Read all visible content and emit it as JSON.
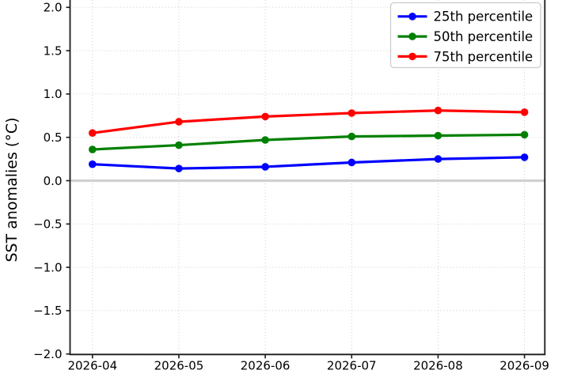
{
  "chart_data": {
    "type": "line",
    "title": "",
    "xlabel": "",
    "ylabel": "SST anomalies (°C)",
    "categories": [
      "2026-04",
      "2026-05",
      "2026-06",
      "2026-07",
      "2026-08",
      "2026-09"
    ],
    "series": [
      {
        "name": "25th percentile",
        "color": "#0000ff",
        "values": [
          0.19,
          0.14,
          0.16,
          0.21,
          0.25,
          0.27
        ]
      },
      {
        "name": "50th percentile",
        "color": "#008000",
        "values": [
          0.36,
          0.41,
          0.47,
          0.51,
          0.52,
          0.53
        ]
      },
      {
        "name": "75th percentile",
        "color": "#ff0000",
        "values": [
          0.55,
          0.68,
          0.74,
          0.78,
          0.81,
          0.79
        ]
      }
    ],
    "ylim": [
      -2.0,
      2.0
    ],
    "yticks": [
      {
        "label": "2.0",
        "value": 2.0
      },
      {
        "label": "1.5",
        "value": 1.5
      },
      {
        "label": "1.0",
        "value": 1.0
      },
      {
        "label": "0.5",
        "value": 0.5
      },
      {
        "label": "0.0",
        "value": 0.0
      },
      {
        "label": "−0.5",
        "value": -0.5
      },
      {
        "label": "−1.0",
        "value": -1.0
      },
      {
        "label": "−1.5",
        "value": -1.5
      },
      {
        "label": "−2.0",
        "value": -2.0
      }
    ],
    "grid": {
      "style": "dotted",
      "color": "#cccccc",
      "on": true
    },
    "zero_line": {
      "value": 0.0,
      "color": "#d0d0d0"
    },
    "legend": {
      "position": "upper right",
      "entries": [
        "25th percentile",
        "50th percentile",
        "75th percentile"
      ]
    }
  }
}
